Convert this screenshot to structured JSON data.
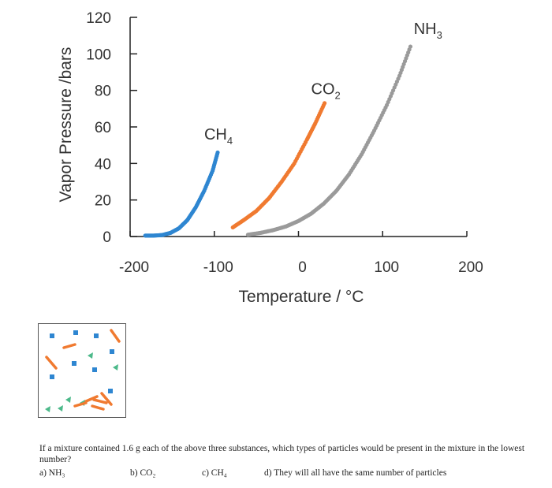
{
  "chart_data": {
    "type": "scatter",
    "xlabel": "Temperature / °C",
    "ylabel": "Vapor Pressure /bars",
    "xlim": [
      -200,
      200
    ],
    "ylim": [
      0,
      120
    ],
    "x_ticks": [
      "-200",
      "-100",
      "0",
      "100",
      "200"
    ],
    "y_ticks": [
      "0",
      "20",
      "40",
      "60",
      "80",
      "100",
      "120"
    ],
    "grid": false,
    "series": [
      {
        "name": "CH4",
        "label_main": "CH",
        "label_sub": "4",
        "color": "#2e86d1",
        "x": [
          -182,
          -172,
          -162,
          -152,
          -142,
          -132,
          -122,
          -112,
          -102,
          -96
        ],
        "y": [
          0.5,
          0.5,
          0.8,
          2,
          4.5,
          9,
          16,
          25,
          36,
          46
        ]
      },
      {
        "name": "CO2",
        "label_main": "CO",
        "label_sub": "2",
        "color": "#f07a30",
        "x": [
          -78,
          -65,
          -50,
          -35,
          -20,
          -5,
          10,
          20,
          31
        ],
        "y": [
          5,
          9,
          14,
          21,
          30,
          40,
          53,
          62,
          73
        ]
      },
      {
        "name": "NH3",
        "label_main": "NH",
        "label_sub": "3",
        "color": "#9a9a9a",
        "x": [
          -60,
          -45,
          -30,
          -15,
          0,
          15,
          30,
          45,
          60,
          75,
          90,
          105,
          120,
          133
        ],
        "y": [
          1,
          2,
          3.5,
          5.5,
          8.5,
          12.5,
          18,
          25,
          34,
          45,
          58,
          72,
          88,
          104
        ]
      }
    ]
  },
  "question": {
    "text": "If a mixture contained 1.6 g each of the above three substances, which types of particles would be present in the mixture in the lowest number?",
    "options": [
      "a) NH₃",
      "b) CO₂",
      "c) CH₄",
      "d) They will all have the same number of particles"
    ]
  }
}
